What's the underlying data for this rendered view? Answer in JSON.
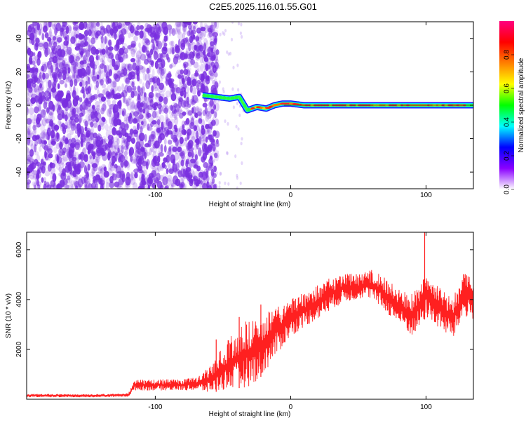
{
  "figure_title": "C2E5.2025.116.01.55.G01",
  "chart_data": [
    {
      "type": "heatmap",
      "xlabel": "Height of straight line (km)",
      "ylabel": "Frequency (Hz)",
      "xlim": [
        -195,
        135
      ],
      "ylim": [
        -50,
        50
      ],
      "x_ticks": [
        -100,
        0,
        100
      ],
      "x_tick_labels": [
        "-100",
        "0",
        "100"
      ],
      "y_ticks": [
        -40,
        -20,
        0,
        20,
        40
      ],
      "y_tick_labels": [
        "-40",
        "-20",
        "0",
        "20",
        "40"
      ],
      "colorbar": {
        "label": "Normalized spectral amplitude",
        "range": [
          0,
          1
        ],
        "ticks": [
          0.0,
          0.2,
          0.4,
          0.6,
          0.8
        ],
        "tick_labels": [
          "0.0",
          "0.2",
          "0.4",
          "0.6",
          "0.8"
        ],
        "colors": [
          "#ffffff",
          "#8a00ff",
          "#0000ff",
          "#00ffff",
          "#00ff00",
          "#ffff00",
          "#ff8000",
          "#ff0000",
          "#ff0080"
        ]
      },
      "noise_region": {
        "x_range": [
          -195,
          -60
        ],
        "amplitude": "low",
        "color": "#7a2fe0"
      },
      "signal_ridge": {
        "x": [
          -65,
          -55,
          -45,
          -38,
          -32,
          -25,
          -18,
          -12,
          -6,
          0,
          10,
          30,
          60,
          90,
          135
        ],
        "frequency": [
          6,
          5,
          4,
          5,
          -3,
          -1,
          -2,
          0,
          1,
          1,
          0,
          0,
          0,
          0,
          0
        ]
      },
      "grid": false
    },
    {
      "type": "line",
      "xlabel": "Height of straight line (km)",
      "ylabel": "SNR (10 * v/v)",
      "xlim": [
        -195,
        135
      ],
      "ylim": [
        0,
        6700
      ],
      "x_ticks": [
        -100,
        0,
        100
      ],
      "x_tick_labels": [
        "-100",
        "0",
        "100"
      ],
      "y_ticks": [
        2000,
        4000,
        6000
      ],
      "y_tick_labels": [
        "2000",
        "4000",
        "6000"
      ],
      "series_color": "#ff2020",
      "envelope": {
        "x": [
          -195,
          -150,
          -120,
          -115,
          -80,
          -70,
          -60,
          -45,
          -30,
          -20,
          -10,
          0,
          10,
          20,
          30,
          40,
          50,
          55,
          60,
          70,
          80,
          90,
          95,
          100,
          110,
          120,
          128,
          135
        ],
        "low": [
          80,
          80,
          100,
          350,
          350,
          350,
          250,
          400,
          500,
          1000,
          1800,
          2500,
          2900,
          3200,
          3600,
          3900,
          4000,
          4100,
          4000,
          3500,
          3000,
          2500,
          2800,
          3300,
          2800,
          2400,
          3300,
          3200
        ],
        "high": [
          220,
          200,
          240,
          800,
          800,
          900,
          1300,
          2500,
          3300,
          3500,
          3800,
          4000,
          4300,
          4600,
          4900,
          5100,
          5000,
          5100,
          5200,
          4900,
          4400,
          4300,
          4600,
          5000,
          4500,
          4100,
          5100,
          4800
        ]
      },
      "spikes": [
        {
          "x": -55,
          "y": 2400
        },
        {
          "x": -38,
          "y": 3300
        },
        {
          "x": -22,
          "y": 3800
        },
        {
          "x": 99,
          "y": 6700
        }
      ],
      "grid": false
    }
  ]
}
